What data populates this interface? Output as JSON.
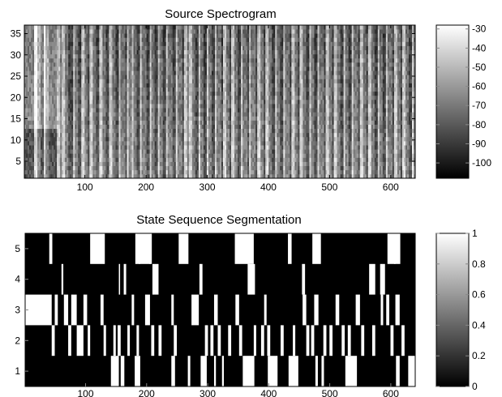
{
  "chart_data": [
    {
      "type": "heatmap",
      "title": "Source Spectrogram",
      "xlabel": "",
      "ylabel": "",
      "xlim": [
        1,
        640
      ],
      "ylim": [
        1,
        37
      ],
      "xticks": [
        100,
        200,
        300,
        400,
        500,
        600
      ],
      "yticks": [
        5,
        10,
        15,
        20,
        25,
        30,
        35
      ],
      "colormap": "gray",
      "colorbar": {
        "range": [
          -108,
          -28
        ],
        "ticks": [
          -30,
          -40,
          -50,
          -60,
          -70,
          -80,
          -90,
          -100
        ]
      },
      "n_time_frames": 640,
      "n_frequency_bins": 37,
      "bright_onset_columns": [
        18,
        32,
        55,
        63,
        80,
        95,
        108,
        124,
        140,
        155,
        168,
        176,
        190,
        205,
        218,
        232,
        248,
        262,
        270,
        285,
        298,
        312,
        326,
        340,
        355,
        368,
        382,
        396,
        410,
        424,
        438,
        452,
        466,
        480,
        494,
        508,
        522,
        536,
        550,
        564,
        578,
        592,
        606,
        620,
        634
      ],
      "level_range_db": [
        -108,
        -28
      ]
    },
    {
      "type": "heatmap",
      "title": "State Sequence Segmentation",
      "xlabel": "",
      "ylabel": "",
      "xlim": [
        1,
        640
      ],
      "ylim": [
        0.5,
        5.5
      ],
      "xticks": [
        100,
        200,
        300,
        400,
        500,
        600
      ],
      "yticks": [
        1,
        2,
        3,
        4,
        5
      ],
      "colormap": "gray",
      "colorbar": {
        "range": [
          0,
          1
        ],
        "ticks": [
          0,
          0.2,
          0.4,
          0.6,
          0.8,
          1
        ]
      },
      "states": [
        {
          "state": 5,
          "active_segments": [
            [
              41,
              45
            ],
            [
              108,
              131
            ],
            [
              182,
              208
            ],
            [
              188,
              189
            ],
            [
              205,
              206
            ],
            [
              253,
              268
            ],
            [
              345,
              375
            ],
            [
              366,
              368
            ],
            [
              432,
              437
            ],
            [
              472,
              485
            ],
            [
              595,
              615
            ],
            [
              606,
              607
            ]
          ]
        },
        {
          "state": 4,
          "active_segments": [
            [
              61,
              63
            ],
            [
              155,
              156
            ],
            [
              163,
              166
            ],
            [
              210,
              219
            ],
            [
              287,
              291
            ],
            [
              366,
              377
            ],
            [
              455,
              459
            ],
            [
              565,
              574
            ],
            [
              583,
              590
            ]
          ]
        },
        {
          "state": 3,
          "active_segments": [
            [
              1,
              44
            ],
            [
              50,
              54
            ],
            [
              65,
              71
            ],
            [
              77,
              85
            ],
            [
              97,
              102
            ],
            [
              125,
              129
            ],
            [
              176,
              179
            ],
            [
              198,
              205
            ],
            [
              241,
              244
            ],
            [
              274,
              285
            ],
            [
              311,
              316
            ],
            [
              346,
              351
            ],
            [
              393,
              396
            ],
            [
              456,
              461
            ],
            [
              475,
              481
            ],
            [
              510,
              515
            ],
            [
              543,
              549
            ],
            [
              584,
              587
            ],
            [
              593,
              597
            ],
            [
              608,
              614
            ]
          ]
        },
        {
          "state": 2,
          "active_segments": [
            [
              45,
              49
            ],
            [
              72,
              76
            ],
            [
              86,
              96
            ],
            [
              104,
              107
            ],
            [
              130,
              133
            ],
            [
              146,
              149
            ],
            [
              153,
              157
            ],
            [
              169,
              172
            ],
            [
              184,
              187
            ],
            [
              208,
              212
            ],
            [
              220,
              224
            ],
            [
              245,
              249
            ],
            [
              296,
              300
            ],
            [
              305,
              309
            ],
            [
              317,
              321
            ],
            [
              334,
              338
            ],
            [
              352,
              356
            ],
            [
              376,
              379
            ],
            [
              388,
              392
            ],
            [
              398,
              402
            ],
            [
              420,
              424
            ],
            [
              440,
              443
            ],
            [
              462,
              466
            ],
            [
              470,
              474
            ],
            [
              490,
              494
            ],
            [
              500,
              504
            ],
            [
              520,
              524
            ],
            [
              530,
              534
            ],
            [
              552,
              556
            ],
            [
              570,
              574
            ],
            [
              600,
              604
            ],
            [
              618,
              622
            ]
          ]
        },
        {
          "state": 1,
          "active_segments": [
            [
              142,
              154
            ],
            [
              158,
              163
            ],
            [
              181,
              189
            ],
            [
              241,
              246
            ],
            [
              268,
              271
            ],
            [
              289,
              298
            ],
            [
              311,
              313
            ],
            [
              324,
              326
            ],
            [
              358,
              376
            ],
            [
              399,
              414
            ],
            [
              433,
              448
            ],
            [
              477,
              480
            ],
            [
              487,
              490
            ],
            [
              526,
              544
            ],
            [
              609,
              614
            ],
            [
              629,
              640
            ]
          ]
        }
      ]
    }
  ]
}
